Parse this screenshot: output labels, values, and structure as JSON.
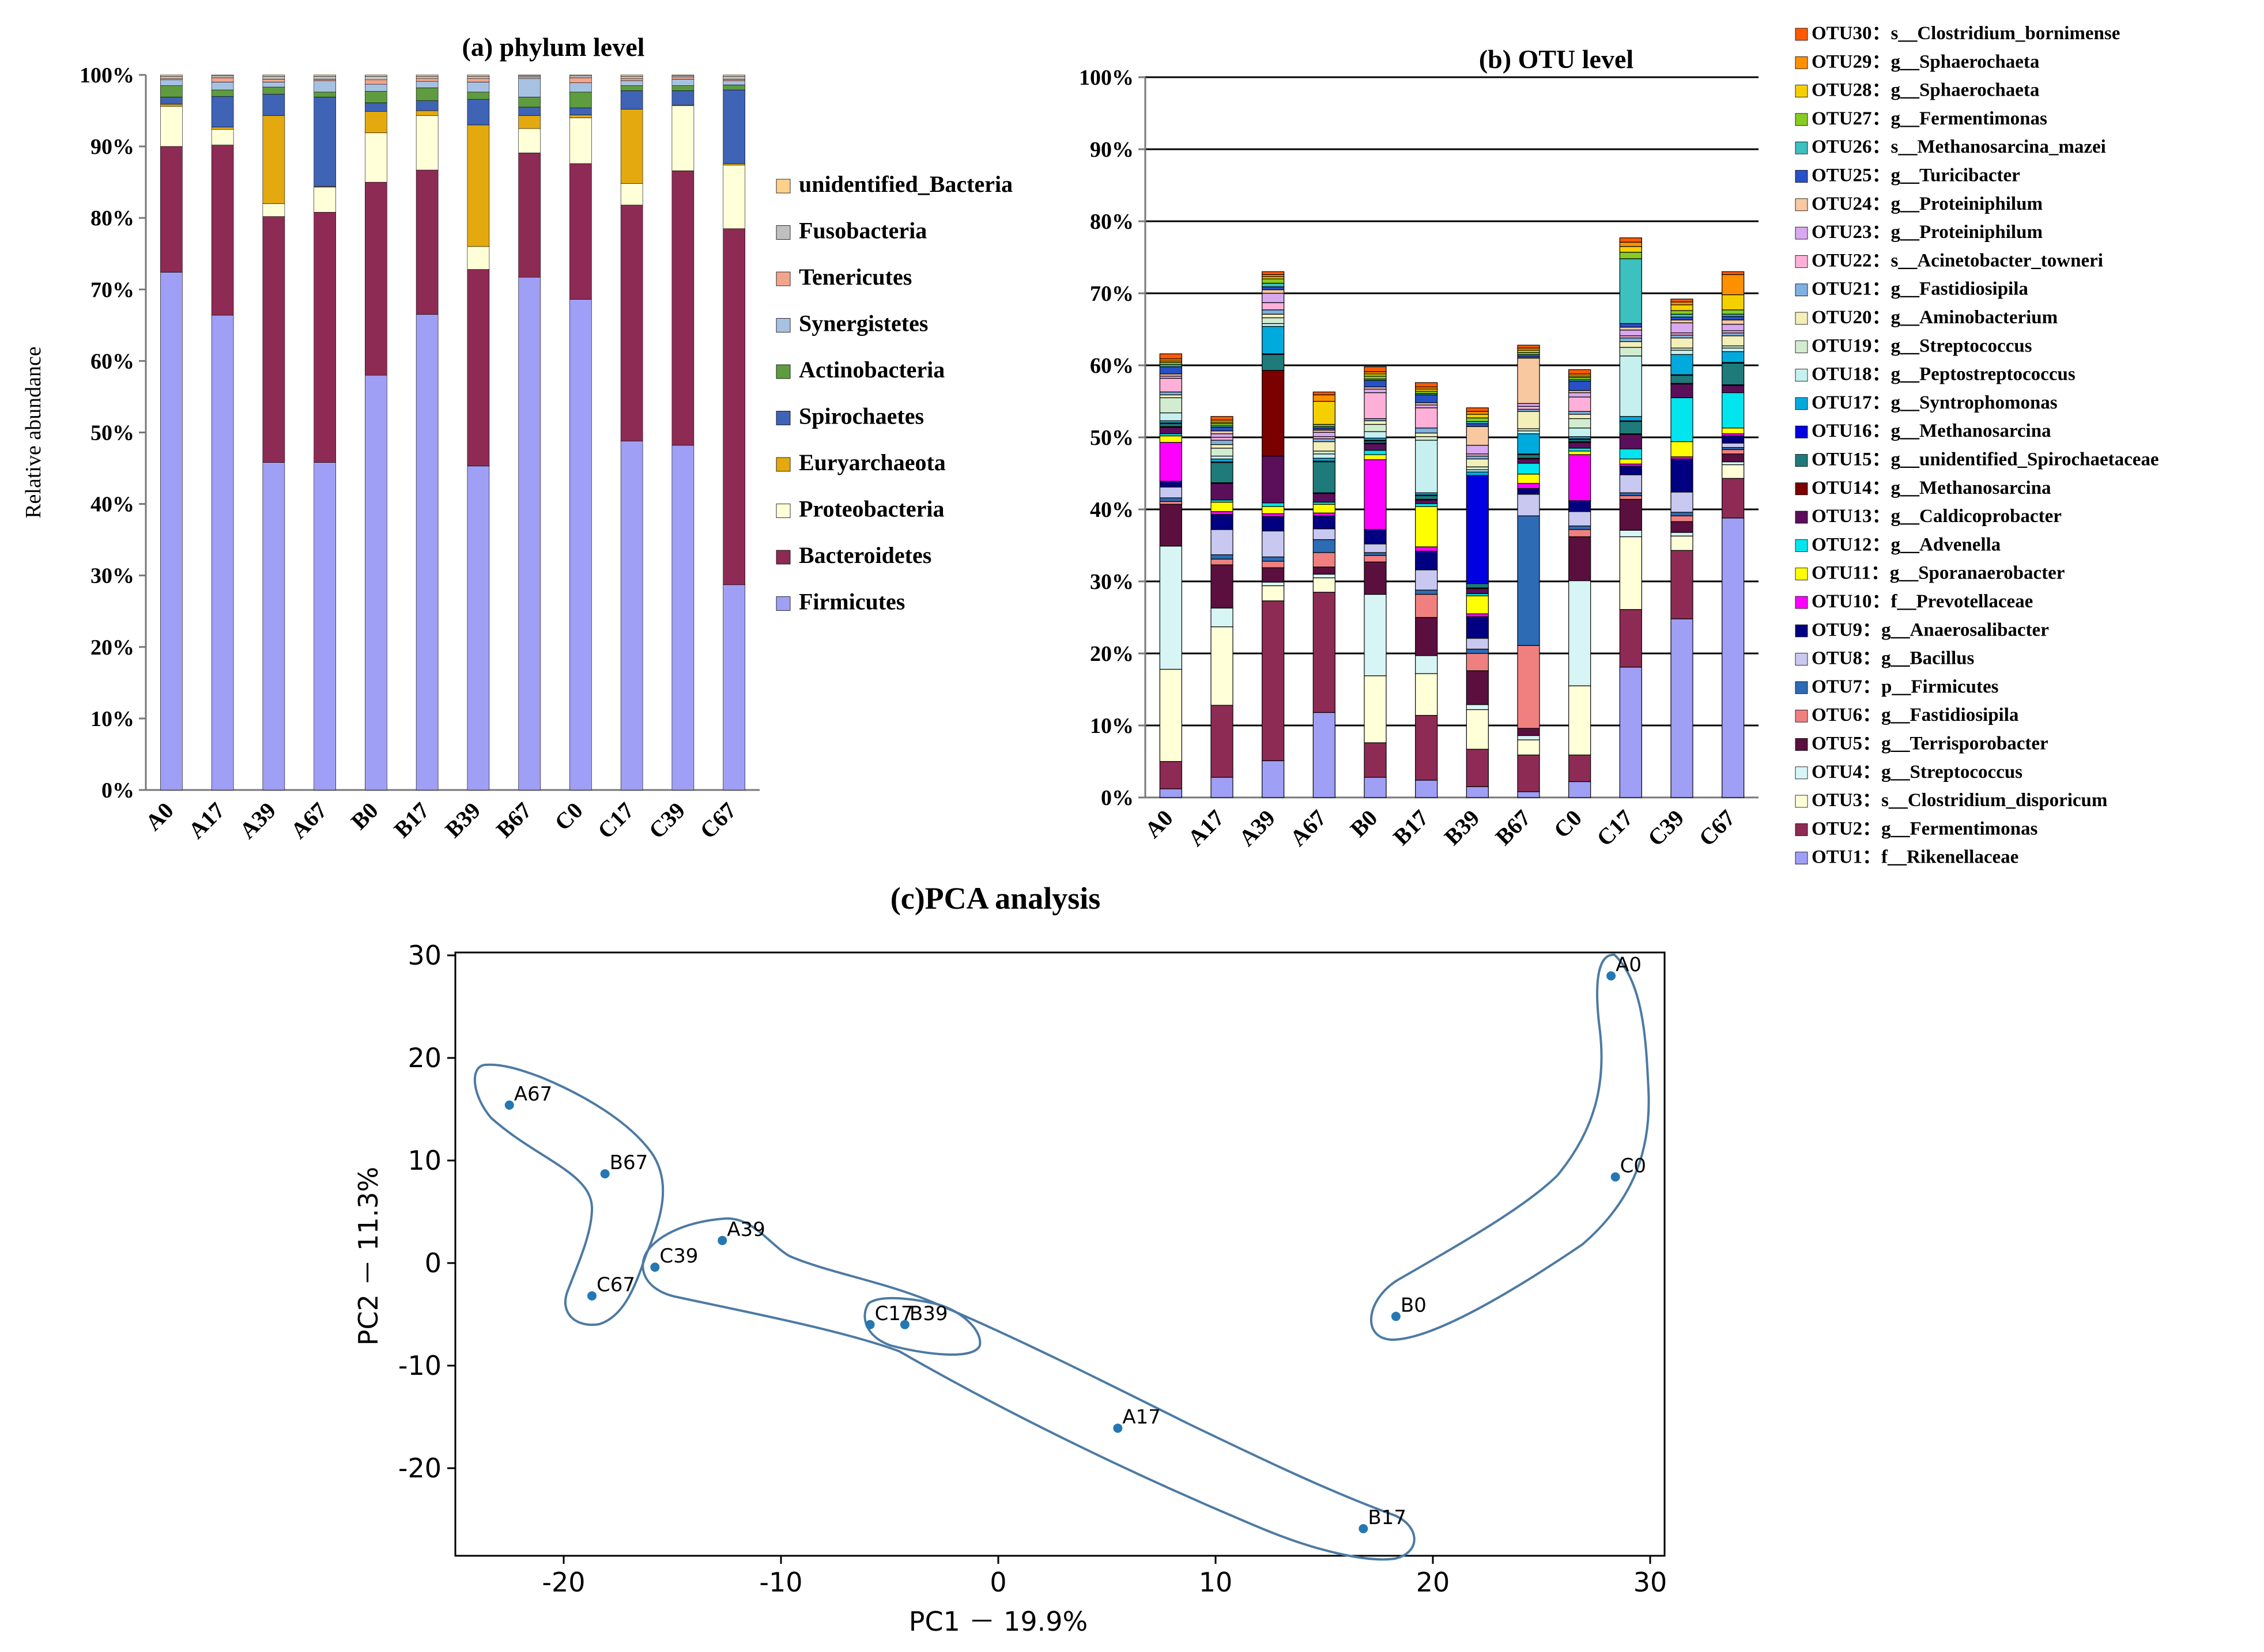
{
  "colors": {
    "unidentified_Bacteria": "#ffd08a",
    "Fusobacteria": "#c0c0c0",
    "Tenericutes": "#f2a58c",
    "Synergistetes": "#a7c1e3",
    "Actinobacteria": "#5f9b3f",
    "Spirochaetes": "#3f63b5",
    "Euryarchaeota": "#e3a90e",
    "Proteobacteria": "#ffffd8",
    "Bacteroidetes": "#8d2b55",
    "Firmicutes": "#9f9ff5",
    "pca_point": "#2577b4",
    "pca_hull": "#4c7aa3"
  },
  "chart_data": [
    {
      "type": "bar",
      "stacked": true,
      "title": "(a) phylum level",
      "xlabel": "",
      "ylabel": "Relative abundance",
      "ylim": [
        0,
        100
      ],
      "yticks": [
        "0%",
        "10%",
        "20%",
        "30%",
        "40%",
        "50%",
        "60%",
        "70%",
        "80%",
        "90%",
        "100%"
      ],
      "categories": [
        "A0",
        "A17",
        "A39",
        "A67",
        "B0",
        "B17",
        "B39",
        "B67",
        "C0",
        "C17",
        "C39",
        "C67"
      ],
      "legend_position": "right",
      "series": [
        {
          "name": "Firmicutes",
          "values": [
            72.4,
            66.4,
            45.8,
            45.8,
            58.0,
            66.5,
            45.3,
            71.7,
            68.6,
            48.8,
            48.2,
            28.7
          ]
        },
        {
          "name": "Bacteroidetes",
          "values": [
            17.6,
            23.8,
            34.4,
            35.0,
            27.0,
            20.2,
            27.5,
            17.4,
            19.0,
            33.0,
            38.4,
            49.8
          ]
        },
        {
          "name": "Proteobacteria",
          "values": [
            5.6,
            2.2,
            1.8,
            3.5,
            6.9,
            7.6,
            3.2,
            3.4,
            6.4,
            3.0,
            9.1,
            8.9
          ]
        },
        {
          "name": "Euryarchaeota",
          "values": [
            0.3,
            0.3,
            12.3,
            0.1,
            3.0,
            0.7,
            17.0,
            1.8,
            0.4,
            10.4,
            0.1,
            0.2
          ]
        },
        {
          "name": "Spirochaetes",
          "values": [
            1.0,
            4.3,
            3.0,
            12.5,
            1.2,
            1.4,
            3.6,
            1.2,
            1.0,
            2.6,
            2.0,
            10.3
          ]
        },
        {
          "name": "Actinobacteria",
          "values": [
            1.6,
            0.9,
            1.0,
            0.7,
            1.6,
            1.8,
            1.0,
            1.4,
            2.2,
            0.7,
            0.7,
            0.7
          ]
        },
        {
          "name": "Synergistetes",
          "values": [
            0.8,
            1.1,
            0.7,
            1.6,
            1.0,
            0.9,
            1.4,
            2.6,
            1.3,
            0.7,
            0.9,
            0.6
          ]
        },
        {
          "name": "Tenericutes",
          "values": [
            0.2,
            0.6,
            0.4,
            0.2,
            0.6,
            0.4,
            0.5,
            0.2,
            0.7,
            0.3,
            0.3,
            0.2
          ]
        },
        {
          "name": "Fusobacteria",
          "values": [
            0.3,
            0.3,
            0.4,
            0.4,
            0.5,
            0.3,
            0.3,
            0.2,
            0.3,
            0.3,
            0.2,
            0.4
          ]
        },
        {
          "name": "unidentified_Bacteria",
          "values": [
            0.2,
            0.1,
            0.2,
            0.2,
            0.2,
            0.2,
            0.2,
            0.1,
            0.1,
            0.2,
            0.1,
            0.2
          ]
        }
      ]
    },
    {
      "type": "bar",
      "stacked": true,
      "title": "(b) OTU level",
      "xlabel": "",
      "ylabel": "",
      "ylim": [
        0,
        100
      ],
      "grid": true,
      "yticks": [
        "0%",
        "10%",
        "20%",
        "30%",
        "40%",
        "50%",
        "60%",
        "70%",
        "80%",
        "90%",
        "100%"
      ],
      "categories": [
        "A0",
        "A17",
        "A39",
        "A67",
        "B0",
        "B17",
        "B39",
        "B67",
        "C0",
        "C17",
        "C39",
        "C67"
      ],
      "legend_position": "right",
      "series": [
        {
          "name": "OTU1：f__Rikenellaceae",
          "color": "#9f9ff5",
          "values": [
            1.2,
            2.8,
            5.1,
            11.8,
            2.8,
            2.4,
            1.5,
            0.8,
            2.2,
            18.1,
            24.8,
            38.8
          ]
        },
        {
          "name": "OTU2：g__Fermentimonas",
          "color": "#8d2b55",
          "values": [
            3.8,
            10.0,
            22.2,
            16.7,
            4.8,
            9.0,
            5.2,
            5.1,
            3.7,
            8.0,
            9.5,
            5.5
          ]
        },
        {
          "name": "OTU3：s__Clostridium_disporicum",
          "color": "#ffffd8",
          "values": [
            12.8,
            10.9,
            2.1,
            2.0,
            9.3,
            5.8,
            5.5,
            2.1,
            9.6,
            10.1,
            2.0,
            1.9
          ]
        },
        {
          "name": "OTU4：g__Streptococcus",
          "color": "#d8f5f5",
          "values": [
            17.1,
            2.6,
            0.5,
            0.5,
            11.3,
            2.5,
            0.7,
            0.6,
            14.6,
            0.9,
            0.5,
            0.4
          ]
        },
        {
          "name": "OTU5：g__Terrisporobacter",
          "color": "#5b0f3f",
          "values": [
            5.8,
            6.0,
            2.0,
            1.0,
            4.5,
            5.3,
            4.7,
            1.0,
            6.1,
            4.3,
            1.5,
            1.1
          ]
        },
        {
          "name": "OTU6：g__Fastidiosipila",
          "color": "#f08080",
          "values": [
            0.4,
            0.8,
            0.9,
            2.0,
            0.9,
            3.2,
            2.4,
            11.5,
            1.0,
            0.5,
            0.8,
            0.6
          ]
        },
        {
          "name": "OTU7：p__Firmicutes",
          "color": "#2e6bb5",
          "values": [
            0.5,
            0.6,
            0.6,
            1.8,
            0.4,
            0.6,
            0.6,
            18.0,
            0.5,
            0.4,
            0.5,
            0.3
          ]
        },
        {
          "name": "OTU8：g__Bacillus",
          "color": "#c8c8f0",
          "values": [
            1.5,
            3.5,
            3.6,
            1.5,
            1.2,
            2.8,
            1.5,
            3.0,
            2.0,
            2.5,
            2.8,
            0.6
          ]
        },
        {
          "name": "OTU9：g__Anaerosalibacter",
          "color": "#000080",
          "values": [
            0.8,
            2.1,
            2.0,
            1.8,
            2.0,
            2.6,
            3.0,
            0.8,
            1.5,
            1.2,
            4.6,
            1.0
          ]
        },
        {
          "name": "OTU10：f__Prevotellaceae",
          "color": "#ff00ff",
          "values": [
            5.4,
            0.4,
            0.4,
            0.4,
            9.7,
            0.6,
            0.4,
            0.7,
            6.4,
            0.3,
            0.3,
            0.3
          ]
        },
        {
          "name": "OTU11：g__Sporanaerobacter",
          "color": "#ffff00",
          "values": [
            0.9,
            1.3,
            1.0,
            1.2,
            0.7,
            5.6,
            2.5,
            1.3,
            0.5,
            0.7,
            2.1,
            0.8
          ]
        },
        {
          "name": "OTU12：g__Advenella",
          "color": "#00e5ee",
          "values": [
            0.3,
            0.3,
            0.5,
            0.3,
            0.6,
            0.4,
            0.3,
            1.5,
            0.4,
            1.4,
            6.1,
            4.9
          ]
        },
        {
          "name": "OTU13：g__Caldicoprobacter",
          "color": "#5b0f5b",
          "values": [
            0.9,
            2.3,
            6.5,
            1.2,
            0.9,
            0.5,
            0.7,
            0.6,
            0.8,
            2.0,
            1.9,
            1.0
          ]
        },
        {
          "name": "OTU14：g__Methanosarcina",
          "color": "#7b0000",
          "values": [
            0.1,
            0.1,
            11.9,
            0.1,
            0.1,
            0.1,
            0.1,
            0.1,
            0.1,
            0.1,
            0.1,
            0.1
          ]
        },
        {
          "name": "OTU15：g__unidentified_Spirochaetaceae",
          "color": "#1f7a7a",
          "values": [
            0.4,
            2.8,
            2.2,
            4.3,
            0.3,
            0.5,
            0.6,
            0.5,
            0.3,
            1.7,
            1.1,
            3.0
          ]
        },
        {
          "name": "OTU16：g__Methanosarcina",
          "color": "#0000e0",
          "values": [
            0.1,
            0.1,
            0.1,
            0.1,
            0.1,
            0.1,
            15.0,
            0.1,
            0.1,
            0.1,
            0.1,
            0.1
          ]
        },
        {
          "name": "OTU17：g__Syntrophomonas",
          "color": "#00aadd",
          "values": [
            0.3,
            0.4,
            3.8,
            0.4,
            0.3,
            0.3,
            0.5,
            2.8,
            0.3,
            0.6,
            2.8,
            1.5
          ]
        },
        {
          "name": "OTU18：g__Peptostreptococcus",
          "color": "#c6f0f0",
          "values": [
            1.1,
            0.4,
            0.4,
            0.6,
            0.9,
            7.3,
            0.3,
            0.4,
            1.2,
            8.4,
            0.6,
            0.5
          ]
        },
        {
          "name": "OTU19：g__Streptococcus",
          "color": "#d2ecd0",
          "values": [
            2.1,
            1.1,
            0.8,
            0.4,
            1.0,
            0.5,
            0.4,
            0.3,
            1.3,
            1.2,
            0.3,
            0.3
          ]
        },
        {
          "name": "OTU20：g__Aminobacterium",
          "color": "#f3efb8",
          "values": [
            0.4,
            0.5,
            0.5,
            1.3,
            0.5,
            0.5,
            1.1,
            2.4,
            0.6,
            0.8,
            1.4,
            1.4
          ]
        },
        {
          "name": "OTU21：g__Fastidiosipila",
          "color": "#7fb0e0",
          "values": [
            0.4,
            0.6,
            0.6,
            0.4,
            0.3,
            0.7,
            0.4,
            0.3,
            0.4,
            0.5,
            0.4,
            0.4
          ]
        },
        {
          "name": "OTU22：s__Acinetobacter_towneri",
          "color": "#ffb0d8",
          "values": [
            1.9,
            0.4,
            1.0,
            0.3,
            3.6,
            2.8,
            0.3,
            0.4,
            2.0,
            0.3,
            0.3,
            0.3
          ]
        },
        {
          "name": "OTU23：g__Proteiniphilum",
          "color": "#d8a8f0",
          "values": [
            0.3,
            0.5,
            1.3,
            0.6,
            0.5,
            0.4,
            1.2,
            0.4,
            0.6,
            0.8,
            1.4,
            0.9
          ]
        },
        {
          "name": "OTU24：g__Proteiniphilum",
          "color": "#f8c8a0",
          "values": [
            0.3,
            0.4,
            0.5,
            0.3,
            0.3,
            0.3,
            2.6,
            6.3,
            0.3,
            0.4,
            0.4,
            0.6
          ]
        },
        {
          "name": "OTU25：g__Turicibacter",
          "color": "#2850c8",
          "values": [
            1.0,
            0.5,
            0.4,
            0.3,
            0.9,
            1.1,
            0.4,
            0.3,
            1.3,
            0.5,
            0.4,
            0.5
          ]
        },
        {
          "name": "OTU26：s__Methanosarcina_mazei",
          "color": "#3cc0c0",
          "values": [
            0.3,
            0.2,
            0.5,
            0.2,
            0.2,
            0.2,
            0.3,
            0.2,
            0.2,
            9.0,
            0.4,
            0.3
          ]
        },
        {
          "name": "OTU27：g__Fermentimonas",
          "color": "#88cc22",
          "values": [
            0.3,
            0.3,
            0.6,
            0.3,
            0.4,
            0.3,
            0.5,
            0.3,
            0.3,
            0.9,
            0.5,
            0.6
          ]
        },
        {
          "name": "OTU28：g__Sphaerochaeta",
          "color": "#f5d000",
          "values": [
            0.2,
            0.2,
            0.3,
            3.2,
            0.3,
            0.3,
            0.5,
            0.3,
            0.2,
            0.8,
            0.8,
            2.1
          ]
        },
        {
          "name": "OTU29：g__Sphaerochaeta",
          "color": "#ff9000",
          "values": [
            0.3,
            0.3,
            0.3,
            0.9,
            0.3,
            0.3,
            0.4,
            0.3,
            0.3,
            0.6,
            0.4,
            2.8
          ]
        },
        {
          "name": "OTU30：s__Clostridium_bornimense",
          "color": "#ff5a00",
          "values": [
            0.7,
            0.5,
            0.4,
            0.4,
            0.7,
            0.6,
            0.5,
            0.4,
            0.6,
            0.6,
            0.4,
            0.4
          ]
        }
      ]
    },
    {
      "type": "scatter",
      "title": "(c)PCA analysis",
      "xlabel": "PC1 － 19.9%",
      "ylabel": "PC2 － 11.3%",
      "xlim": [
        -25,
        31
      ],
      "ylim": [
        -28.5,
        31
      ],
      "xticks": [
        -20,
        -10,
        0,
        10,
        20,
        30
      ],
      "yticks": [
        -20,
        -10,
        0,
        10,
        20,
        30
      ],
      "points": [
        {
          "label": "A0",
          "x": 28.2,
          "y": 28.0
        },
        {
          "label": "C0",
          "x": 28.4,
          "y": 8.4
        },
        {
          "label": "B0",
          "x": 18.3,
          "y": -5.2
        },
        {
          "label": "A67",
          "x": -22.5,
          "y": 15.4
        },
        {
          "label": "B67",
          "x": -18.1,
          "y": 8.7
        },
        {
          "label": "C67",
          "x": -18.7,
          "y": -3.2
        },
        {
          "label": "A39",
          "x": -12.7,
          "y": 2.2
        },
        {
          "label": "C39",
          "x": -15.8,
          "y": -0.4
        },
        {
          "label": "C17",
          "x": -5.9,
          "y": -6.0
        },
        {
          "label": "B39",
          "x": -4.3,
          "y": -6.0
        },
        {
          "label": "A17",
          "x": 5.5,
          "y": -16.1
        },
        {
          "label": "B17",
          "x": 16.8,
          "y": -25.9
        }
      ],
      "groups": [
        [
          "A0",
          "C0",
          "B0"
        ],
        [
          "A67",
          "B67",
          "C67"
        ],
        [
          "C39",
          "A39",
          "C17",
          "B39",
          "A17",
          "B17"
        ],
        [
          "C17",
          "B39"
        ]
      ]
    }
  ]
}
